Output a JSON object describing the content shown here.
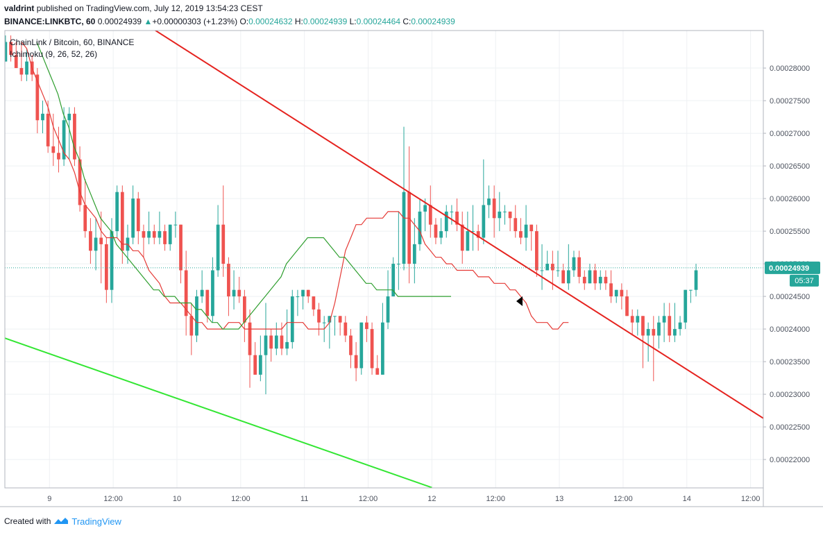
{
  "header": {
    "author": "valdrint",
    "published": "published on TradingView.com, July 12, 2019 13:54:23 CEST",
    "symbol": "BINANCE:LINKBTC, 60",
    "last": "0.00024939",
    "change": "+0.00000303 (+1.23%)",
    "o_label": "O:",
    "o": "0.00024632",
    "h_label": "H:",
    "h": "0.00024939",
    "l_label": "L:",
    "l": "0.00024464",
    "c_label": "C:",
    "c": "0.00024939"
  },
  "footer": {
    "created": "Created with",
    "brand": "TradingView"
  },
  "colors": {
    "up": "#26a69a",
    "down": "#ef5350",
    "conversion": "#e53935",
    "base": "#2e9e2e",
    "resistance": "#e5231f",
    "support": "#33e633",
    "price": "#26a69a"
  },
  "chart_data": {
    "type": "candlestick",
    "title": "ChainLink / Bitcoin, 60, BINANCE",
    "indicator": "Ichimoku (9, 26, 52, 26)",
    "xlabel": "",
    "ylabel": "",
    "xlim": [
      8.65,
      14.6
    ],
    "ylim": [
      0.00021565,
      0.00028575
    ],
    "x_ticks": [
      {
        "x": 9,
        "label": "9"
      },
      {
        "x": 9.5,
        "label": "12:00"
      },
      {
        "x": 10,
        "label": "10"
      },
      {
        "x": 10.5,
        "label": "12:00"
      },
      {
        "x": 11,
        "label": "11"
      },
      {
        "x": 11.5,
        "label": "12:00"
      },
      {
        "x": 12,
        "label": "12"
      },
      {
        "x": 12.5,
        "label": "12:00"
      },
      {
        "x": 13,
        "label": "13"
      },
      {
        "x": 13.5,
        "label": "12:00"
      },
      {
        "x": 14,
        "label": "14"
      },
      {
        "x": 14.5,
        "label": "12:00"
      }
    ],
    "y_ticks": [
      "0.00022000",
      "0.00022500",
      "0.00023000",
      "0.00023500",
      "0.00024000",
      "0.00024500",
      "0.00025000",
      "0.00025500",
      "0.00026000",
      "0.00026500",
      "0.00027000",
      "0.00027500",
      "0.00028000"
    ],
    "x_start": 8.655,
    "x_step": 0.04167,
    "candles": [
      [
        0.000281,
        0.000284,
        0.000281,
        0.000285
      ],
      [
        0.000284,
        0.000282,
        0.000281,
        0.000285
      ],
      [
        0.000282,
        0.00028,
        0.00028,
        0.000284
      ],
      [
        0.00028,
        0.000279,
        0.000278,
        0.000284
      ],
      [
        0.000279,
        0.000281,
        0.000278,
        0.000283
      ],
      [
        0.000281,
        0.000279,
        0.000278,
        0.000282
      ],
      [
        0.000279,
        0.000272,
        0.00027,
        0.00028
      ],
      [
        0.000272,
        0.000273,
        0.00027,
        0.000275
      ],
      [
        0.000273,
        0.000268,
        0.000267,
        0.000275
      ],
      [
        0.000268,
        0.000267,
        0.000265,
        0.000273
      ],
      [
        0.000267,
        0.000266,
        0.000264,
        0.000271
      ],
      [
        0.000266,
        0.000272,
        0.000265,
        0.000274
      ],
      [
        0.000272,
        0.000273,
        0.000266,
        0.000274
      ],
      [
        0.000273,
        0.000266,
        0.000265,
        0.000274
      ],
      [
        0.000266,
        0.000259,
        0.000258,
        0.000268
      ],
      [
        0.000259,
        0.000255,
        0.000254,
        0.000263
      ],
      [
        0.000255,
        0.000252,
        0.00025,
        0.000257
      ],
      [
        0.000252,
        0.000254,
        0.000249,
        0.000257
      ],
      [
        0.000254,
        0.000253,
        0.000247,
        0.000258
      ],
      [
        0.000253,
        0.000246,
        0.000244,
        0.000254
      ],
      [
        0.000246,
        0.000255,
        0.000244,
        0.000257
      ],
      [
        0.000255,
        0.000261,
        0.000254,
        0.000262
      ],
      [
        0.000261,
        0.000252,
        0.00025,
        0.000262
      ],
      [
        0.000252,
        0.000254,
        0.00025,
        0.000256
      ],
      [
        0.000254,
        0.00026,
        0.000253,
        0.000262
      ],
      [
        0.00026,
        0.000255,
        0.000253,
        0.000261
      ],
      [
        0.000255,
        0.000254,
        0.000251,
        0.000256
      ],
      [
        0.000254,
        0.000255,
        0.000253,
        0.000258
      ],
      [
        0.000255,
        0.000254,
        0.000253,
        0.000256
      ],
      [
        0.000254,
        0.000255,
        0.000253,
        0.000258
      ],
      [
        0.000255,
        0.000253,
        0.000252,
        0.000256
      ],
      [
        0.000253,
        0.000256,
        0.000252,
        0.000256
      ],
      [
        0.000256,
        0.000256,
        0.000254,
        0.000258
      ],
      [
        0.000256,
        0.000249,
        0.000247,
        0.000256
      ],
      [
        0.000249,
        0.000242,
        0.000239,
        0.000252
      ],
      [
        0.000242,
        0.000239,
        0.000236,
        0.000244
      ],
      [
        0.000239,
        0.000245,
        0.000238,
        0.000246
      ],
      [
        0.000245,
        0.000246,
        0.000244,
        0.000249
      ],
      [
        0.000246,
        0.000242,
        0.000241,
        0.000246
      ],
      [
        0.000242,
        0.000249,
        0.000241,
        0.000251
      ],
      [
        0.000249,
        0.000256,
        0.000248,
        0.000259
      ],
      [
        0.000256,
        0.00025,
        0.000248,
        0.000262
      ],
      [
        0.00025,
        0.000245,
        0.000242,
        0.000251
      ],
      [
        0.000245,
        0.000246,
        0.000243,
        0.000249
      ],
      [
        0.000246,
        0.000245,
        0.000244,
        0.000248
      ],
      [
        0.000245,
        0.000241,
        0.000238,
        0.000246
      ],
      [
        0.000241,
        0.000236,
        0.000231,
        0.000243
      ],
      [
        0.000236,
        0.000233,
        0.000233,
        0.000238
      ],
      [
        0.000233,
        0.000236,
        0.000232,
        0.000239
      ],
      [
        0.000236,
        0.000239,
        0.00023,
        0.000244
      ],
      [
        0.000239,
        0.000237,
        0.000235,
        0.00024
      ],
      [
        0.000237,
        0.000239,
        0.000236,
        0.000241
      ],
      [
        0.000239,
        0.000237,
        0.000236,
        0.000241
      ],
      [
        0.000237,
        0.000238,
        0.000236,
        0.000243
      ],
      [
        0.000238,
        0.000245,
        0.000237,
        0.000246
      ],
      [
        0.000245,
        0.000245,
        0.000242,
        0.000246
      ],
      [
        0.000245,
        0.000246,
        0.000243,
        0.000246
      ],
      [
        0.000246,
        0.000245,
        0.000244,
        0.000246
      ],
      [
        0.000245,
        0.000243,
        0.000242,
        0.000245
      ],
      [
        0.000243,
        0.000241,
        0.000239,
        0.000244
      ],
      [
        0.000241,
        0.000241,
        0.000238,
        0.000242
      ],
      [
        0.000241,
        0.000242,
        0.000237,
        0.000242
      ],
      [
        0.000242,
        0.000242,
        0.000239,
        0.000242
      ],
      [
        0.000242,
        0.000241,
        0.000239,
        0.000242
      ],
      [
        0.000241,
        0.000239,
        0.000238,
        0.000242
      ],
      [
        0.000239,
        0.000236,
        0.000234,
        0.00024
      ],
      [
        0.000236,
        0.000234,
        0.000232,
        0.000238
      ],
      [
        0.000234,
        0.000241,
        0.000233,
        0.000241
      ],
      [
        0.000241,
        0.00024,
        0.000238,
        0.000242
      ],
      [
        0.00024,
        0.000234,
        0.000233,
        0.000241
      ],
      [
        0.000234,
        0.000233,
        0.000233,
        0.000236
      ],
      [
        0.000233,
        0.000241,
        0.000233,
        0.000244
      ],
      [
        0.000241,
        0.000245,
        0.00024,
        0.000249
      ],
      [
        0.000245,
        0.00025,
        0.000245,
        0.000251
      ],
      [
        0.00025,
        0.00025,
        0.000246,
        0.000258
      ],
      [
        0.00025,
        0.000261,
        0.000249,
        0.000271
      ],
      [
        0.000261,
        0.00025,
        0.000247,
        0.000268
      ],
      [
        0.00025,
        0.000253,
        0.000247,
        0.000257
      ],
      [
        0.000253,
        0.000258,
        0.000252,
        0.00026
      ],
      [
        0.000258,
        0.000259,
        0.000255,
        0.00026
      ],
      [
        0.000259,
        0.000256,
        0.000254,
        0.000262
      ],
      [
        0.000256,
        0.000254,
        0.000253,
        0.000257
      ],
      [
        0.000254,
        0.000255,
        0.000253,
        0.000257
      ],
      [
        0.000255,
        0.000258,
        0.000254,
        0.000259
      ],
      [
        0.000258,
        0.000258,
        0.000256,
        0.000259
      ],
      [
        0.000258,
        0.000256,
        0.000255,
        0.00026
      ],
      [
        0.000256,
        0.000252,
        0.00025,
        0.000258
      ],
      [
        0.000252,
        0.000255,
        0.000252,
        0.000258
      ],
      [
        0.000255,
        0.000255,
        0.000252,
        0.000259
      ],
      [
        0.000255,
        0.000254,
        0.000252,
        0.000256
      ],
      [
        0.000254,
        0.000259,
        0.000253,
        0.000266
      ],
      [
        0.000259,
        0.00026,
        0.000257,
        0.000262
      ],
      [
        0.00026,
        0.000257,
        0.000254,
        0.000262
      ],
      [
        0.000257,
        0.000258,
        0.000255,
        0.000261
      ],
      [
        0.000258,
        0.000258,
        0.000256,
        0.000259
      ],
      [
        0.000258,
        0.000257,
        0.000255,
        0.000258
      ],
      [
        0.000257,
        0.000255,
        0.000254,
        0.000259
      ],
      [
        0.000255,
        0.000254,
        0.000253,
        0.000257
      ],
      [
        0.000254,
        0.000256,
        0.000252,
        0.000259
      ],
      [
        0.000256,
        0.000255,
        0.000252,
        0.000256
      ],
      [
        0.000255,
        0.000249,
        0.000248,
        0.000256
      ],
      [
        0.000249,
        0.000249,
        0.000246,
        0.000253
      ],
      [
        0.000249,
        0.00025,
        0.000249,
        0.000252
      ],
      [
        0.00025,
        0.000249,
        0.000246,
        0.000252
      ],
      [
        0.000249,
        0.000249,
        0.000248,
        0.000252
      ],
      [
        0.000249,
        0.000247,
        0.000247,
        0.00025
      ],
      [
        0.000247,
        0.000249,
        0.000246,
        0.000253
      ],
      [
        0.000249,
        0.000251,
        0.000248,
        0.000252
      ],
      [
        0.000251,
        0.000248,
        0.000247,
        0.000252
      ],
      [
        0.000248,
        0.000247,
        0.000246,
        0.000249
      ],
      [
        0.000247,
        0.000249,
        0.000247,
        0.00025
      ],
      [
        0.000249,
        0.000247,
        0.000246,
        0.00025
      ],
      [
        0.000247,
        0.000248,
        0.000246,
        0.000249
      ],
      [
        0.000248,
        0.000247,
        0.000246,
        0.000249
      ],
      [
        0.000247,
        0.000245,
        0.000244,
        0.000249
      ],
      [
        0.000245,
        0.000246,
        0.000244,
        0.000246
      ],
      [
        0.000246,
        0.000245,
        0.000243,
        0.000247
      ],
      [
        0.000245,
        0.000242,
        0.000242,
        0.000246
      ],
      [
        0.000242,
        0.000241,
        0.000239,
        0.000243
      ],
      [
        0.000241,
        0.000242,
        0.000239,
        0.000243
      ],
      [
        0.000242,
        0.000239,
        0.000234,
        0.000242
      ],
      [
        0.000239,
        0.00024,
        0.000235,
        0.000241
      ],
      [
        0.00024,
        0.000239,
        0.000232,
        0.000242
      ],
      [
        0.000239,
        0.000241,
        0.000237,
        0.000242
      ],
      [
        0.000241,
        0.000242,
        0.000238,
        0.000244
      ],
      [
        0.000242,
        0.000239,
        0.000238,
        0.000244
      ],
      [
        0.000239,
        0.00024,
        0.000238,
        0.000244
      ],
      [
        0.00024,
        0.000241,
        0.000239,
        0.000242
      ],
      [
        0.000241,
        0.000246,
        0.00024,
        0.000246
      ],
      [
        0.000246,
        0.000246,
        0.000244,
        0.000246
      ],
      [
        0.000246,
        0.000249,
        0.000245,
        0.00025
      ]
    ],
    "conversion_line": {
      "x_start": 8.78,
      "values": [
        0.000284,
        0.000283,
        0.00028,
        0.000278,
        0.000276,
        0.000274,
        0.000271,
        0.000269,
        0.000267,
        0.000266,
        0.000264,
        0.000261,
        0.000259,
        0.000258,
        0.000257,
        0.000255,
        0.000254,
        0.000254,
        0.000254,
        0.000253,
        0.000253,
        0.000252,
        0.000252,
        0.000251,
        0.000249,
        0.000248,
        0.000247,
        0.000245,
        0.000244,
        0.000244,
        0.000244,
        0.000243,
        0.000242,
        0.000241,
        0.000241,
        0.00024,
        0.00024,
        0.00024,
        0.00024,
        0.000241,
        0.000241,
        0.000241,
        0.00024,
        0.00024,
        0.00024,
        0.00024,
        0.00024,
        0.00024,
        0.00024,
        0.00024,
        0.000241,
        0.000241,
        0.000241,
        0.000241,
        0.00024,
        0.00024,
        0.00024,
        0.00024,
        0.000241,
        0.000244,
        0.000248,
        0.000252,
        0.000254,
        0.000256,
        0.000256,
        0.000257,
        0.000257,
        0.000257,
        0.000257,
        0.000258,
        0.000258,
        0.000258,
        0.000257,
        0.000257,
        0.000256,
        0.000255,
        0.000253,
        0.000252,
        0.000251,
        0.000251,
        0.00025,
        0.00025,
        0.000249,
        0.000249,
        0.000249,
        0.000249,
        0.000248,
        0.000248,
        0.000248,
        0.000247,
        0.000247,
        0.000247,
        0.000246,
        0.000246,
        0.000245,
        0.000244,
        0.000242,
        0.000241,
        0.000241,
        0.000241,
        0.00024,
        0.00024,
        0.000241,
        0.000241
      ]
    },
    "base_line": {
      "x_start": 8.9,
      "values": [
        0.000284,
        0.000282,
        0.00028,
        0.000278,
        0.000276,
        0.000273,
        0.000271,
        0.000268,
        0.000266,
        0.000263,
        0.000261,
        0.000259,
        0.000257,
        0.000256,
        0.000255,
        0.000253,
        0.000252,
        0.000251,
        0.00025,
        0.000249,
        0.000248,
        0.000247,
        0.000246,
        0.000246,
        0.000245,
        0.000245,
        0.000245,
        0.000244,
        0.000244,
        0.000244,
        0.000243,
        0.000243,
        0.000242,
        0.000241,
        0.000241,
        0.00024,
        0.00024,
        0.00024,
        0.00024,
        0.000241,
        0.000242,
        0.000243,
        0.000244,
        0.000245,
        0.000246,
        0.000247,
        0.000248,
        0.00025,
        0.000251,
        0.000252,
        0.000253,
        0.000254,
        0.000254,
        0.000254,
        0.000254,
        0.000253,
        0.000252,
        0.000251,
        0.000251,
        0.00025,
        0.000249,
        0.000248,
        0.000247,
        0.000247,
        0.000246,
        0.000246,
        0.000246,
        0.000246,
        0.000245,
        0.000245,
        0.000245,
        0.000245,
        0.000245,
        0.000245,
        0.000245,
        0.000245,
        0.000245,
        0.000245,
        0.000245
      ]
    },
    "resistance_line": [
      [
        9.78,
        0.0002864
      ],
      [
        14.65,
        0.0002257
      ]
    ],
    "support_line": [
      [
        8.65,
        0.0002386
      ],
      [
        12.0,
        0.0002157
      ]
    ],
    "last_price": "0.00024939",
    "countdown": "05:37",
    "grid": true,
    "legend": "top-left"
  }
}
